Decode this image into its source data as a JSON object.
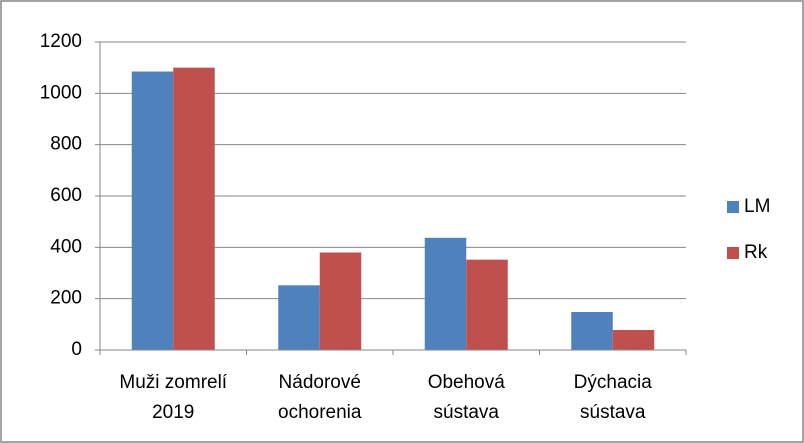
{
  "chart_data": {
    "type": "bar",
    "categories": [
      "Muži zomrelí 2019",
      "Nádorové ochorenia",
      "Obehová sústava",
      "Dýchacia sústava"
    ],
    "series": [
      {
        "name": "LM",
        "color": "#4f81bd",
        "values": [
          1085,
          252,
          437,
          148
        ]
      },
      {
        "name": "Rk",
        "color": "#c0504d",
        "values": [
          1100,
          380,
          352,
          78
        ]
      }
    ],
    "ylim": [
      0,
      1200
    ],
    "yticks": [
      0,
      200,
      400,
      600,
      800,
      1000,
      1200
    ],
    "grid": true,
    "legend": "right"
  }
}
